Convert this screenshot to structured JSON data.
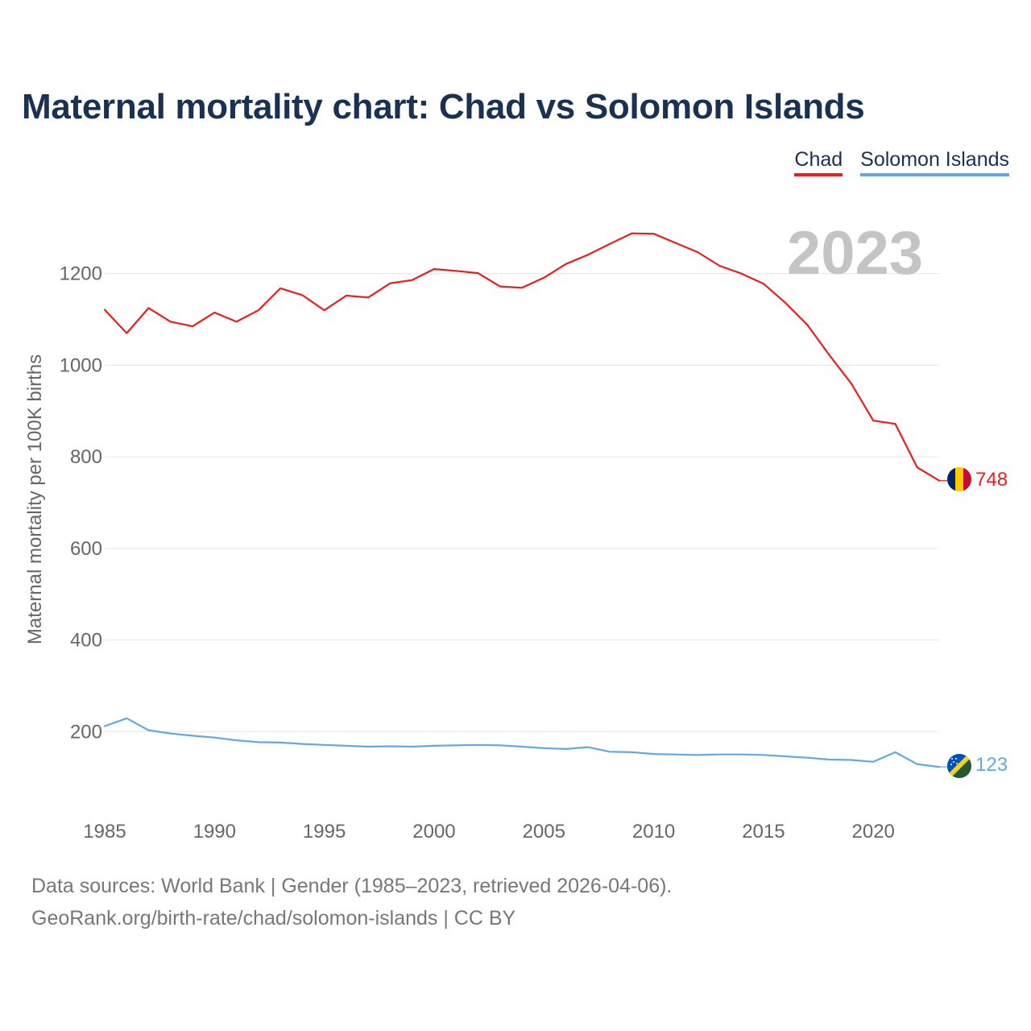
{
  "title": "Maternal mortality chart: Chad vs Solomon Islands",
  "year_badge": "2023",
  "legend": [
    {
      "label": "Chad",
      "color": "#ee1c1c"
    },
    {
      "label": "Solomon Islands",
      "color": "#62a8e5"
    }
  ],
  "footer": {
    "source": "Data sources: World Bank | Gender (1985–2023, retrieved 2026-04-06).",
    "credit": "GeoRank.org/birth-rate/chad/solomon-islands | CC BY"
  },
  "colors": {
    "title": "#1b3153",
    "axis_text": "#666666",
    "grid": "#e6e6e6",
    "year_badge": "#c4c4c4"
  },
  "chart_data": {
    "type": "line",
    "title": "Maternal mortality chart: Chad vs Solomon Islands",
    "xlabel": "",
    "ylabel": "Maternal mortality per 100K births",
    "x": [
      1985,
      1986,
      1987,
      1988,
      1989,
      1990,
      1991,
      1992,
      1993,
      1994,
      1995,
      1996,
      1997,
      1998,
      1999,
      2000,
      2001,
      2002,
      2003,
      2004,
      2005,
      2006,
      2007,
      2008,
      2009,
      2010,
      2011,
      2012,
      2013,
      2014,
      2015,
      2016,
      2017,
      2018,
      2019,
      2020,
      2021,
      2022,
      2023
    ],
    "xlim": [
      1985,
      2023
    ],
    "ylim": [
      0,
      1400
    ],
    "xticks": [
      1985,
      1990,
      1995,
      2000,
      2005,
      2010,
      2015,
      2020
    ],
    "xtick_labels": [
      "1985",
      "1990",
      "1995",
      "2000",
      "2005",
      "2010",
      "2015",
      "2020"
    ],
    "yticks": [
      200,
      400,
      600,
      800,
      1000,
      1200
    ],
    "ytick_labels": [
      "200",
      "400",
      "600",
      "800",
      "1000",
      "1200"
    ],
    "grid": true,
    "legend_position": "top-right",
    "series": [
      {
        "name": "Chad",
        "color": "#ee1c1c",
        "flag": "chad-flag",
        "end_label": "748",
        "values": [
          1121,
          1070,
          1125,
          1095,
          1085,
          1115,
          1095,
          1120,
          1168,
          1153,
          1120,
          1152,
          1148,
          1179,
          1186,
          1210,
          1206,
          1201,
          1172,
          1169,
          1191,
          1221,
          1241,
          1265,
          1288,
          1287,
          1267,
          1247,
          1217,
          1200,
          1178,
          1136,
          1088,
          1022,
          960,
          879,
          872,
          777,
          748
        ]
      },
      {
        "name": "Solomon Islands",
        "color": "#62a8e5",
        "flag": "solomon-islands-flag",
        "end_label": "123",
        "values": [
          212,
          229,
          203,
          196,
          191,
          187,
          181,
          177,
          176,
          173,
          171,
          169,
          167,
          168,
          167,
          169,
          170,
          171,
          170,
          167,
          164,
          162,
          166,
          156,
          155,
          151,
          150,
          149,
          150,
          150,
          149,
          146,
          143,
          139,
          138,
          134,
          155,
          129,
          123
        ]
      }
    ]
  }
}
